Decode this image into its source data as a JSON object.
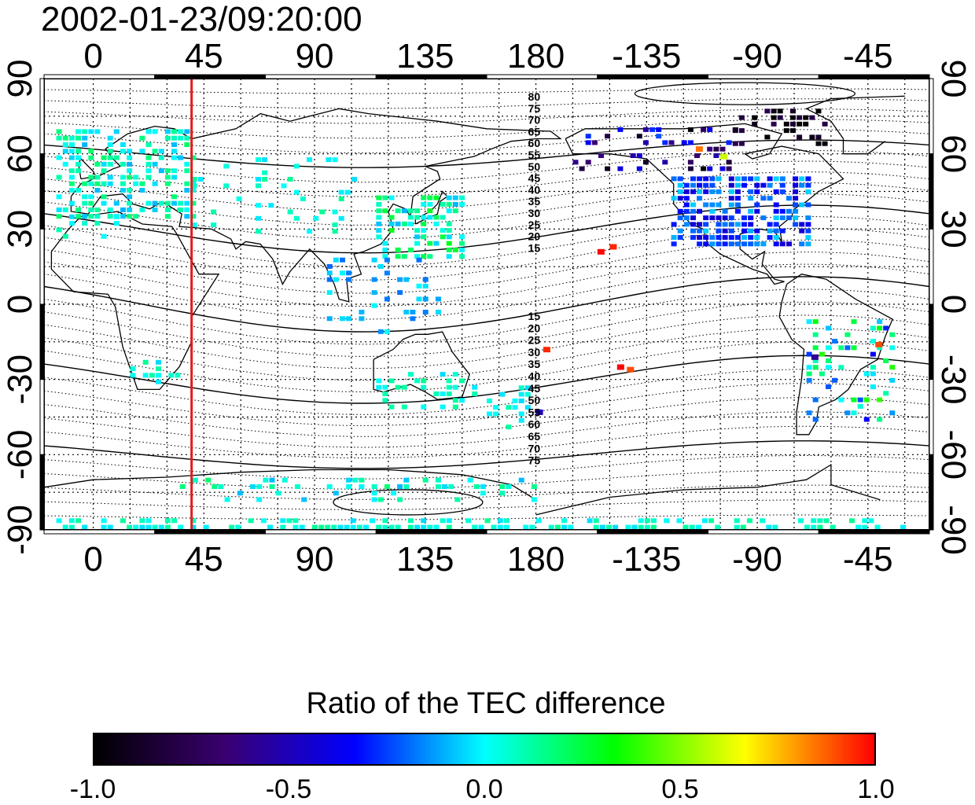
{
  "title": "2002-01-23/09:20:00",
  "map": {
    "lon_ticks": [
      "0",
      "45",
      "90",
      "135",
      "180",
      "-135",
      "-90",
      "-45"
    ],
    "lat_ticks": [
      "90",
      "60",
      "30",
      "0",
      "-30",
      "-60",
      "-90"
    ],
    "contour_labels_north": [
      "80",
      "75",
      "70",
      "65",
      "60",
      "55",
      "50",
      "45",
      "40",
      "35",
      "30",
      "25",
      "20",
      "15"
    ],
    "contour_labels_south": [
      "15",
      "20",
      "25",
      "30",
      "35",
      "40",
      "45",
      "50",
      "55",
      "60",
      "65",
      "70",
      "75"
    ],
    "marker_longitude": 40,
    "marker_color": "#e41a1a",
    "lon_range": [
      -20,
      340
    ],
    "lat_range": [
      -90,
      90
    ]
  },
  "colorbar": {
    "title": "Ratio of the TEC difference",
    "labels": [
      "-1.0",
      "-0.5",
      "0.0",
      "0.5",
      "1.0"
    ],
    "range": [
      -1.0,
      1.0
    ],
    "colors": [
      "#000000",
      "#3a0070",
      "#0000ff",
      "#00ffff",
      "#00ff00",
      "#ffff00",
      "#ff0000"
    ]
  }
}
